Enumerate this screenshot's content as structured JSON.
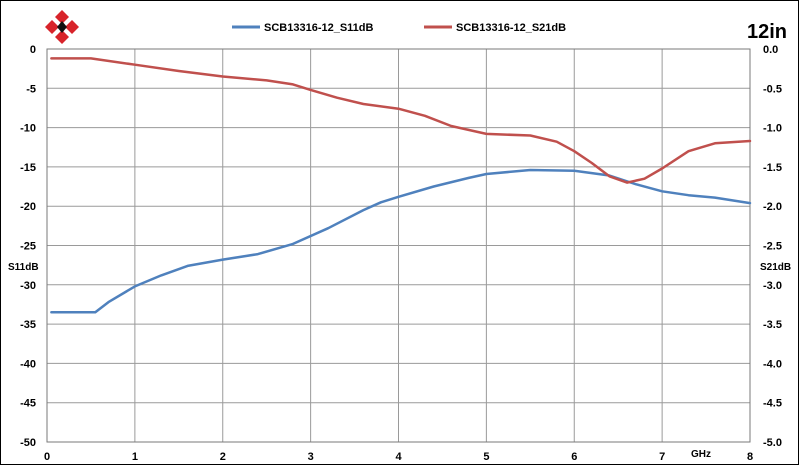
{
  "badge": "12in",
  "chart_data": {
    "type": "line",
    "xlabel": "GHz",
    "ylabel_left": "S11dB",
    "ylabel_right": "S21dB",
    "xlim": [
      0,
      8
    ],
    "ylim_left": [
      -50,
      0
    ],
    "ylim_right": [
      -5.0,
      0.0
    ],
    "x_ticks": [
      "0",
      "1",
      "2",
      "3",
      "4",
      "5",
      "6",
      "7",
      "8"
    ],
    "y_left_ticks": [
      "0",
      "-5",
      "-10",
      "-15",
      "-20",
      "-25",
      "-30",
      "-35",
      "-40",
      "-45",
      "-50"
    ],
    "y_right_ticks": [
      "0.0",
      "-0.5",
      "-1.0",
      "-1.5",
      "-2.0",
      "-2.5",
      "-3.0",
      "-3.5",
      "-4.0",
      "-4.5",
      "-5.0"
    ],
    "grid": true,
    "legend_position": "top",
    "series": [
      {
        "name": "SCB13316-12_S11dB",
        "color": "#4f81bd",
        "axis": "left",
        "x": [
          0.05,
          0.3,
          0.55,
          0.7,
          1.0,
          1.3,
          1.6,
          2.0,
          2.4,
          2.8,
          3.2,
          3.6,
          3.8,
          4.0,
          4.4,
          4.8,
          5.0,
          5.5,
          6.0,
          6.4,
          6.7,
          7.0,
          7.3,
          7.6,
          8.0
        ],
        "y": [
          -33.5,
          -33.5,
          -33.5,
          -32.2,
          -30.2,
          -28.8,
          -27.6,
          -26.8,
          -26.1,
          -24.8,
          -22.8,
          -20.5,
          -19.5,
          -18.8,
          -17.5,
          -16.4,
          -15.9,
          -15.4,
          -15.5,
          -16.1,
          -17.2,
          -18.1,
          -18.6,
          -18.9,
          -19.6
        ]
      },
      {
        "name": "SCB13316-12_S21dB",
        "color": "#c0504d",
        "axis": "right",
        "x": [
          0.05,
          0.5,
          1.0,
          1.5,
          2.0,
          2.5,
          2.8,
          3.0,
          3.3,
          3.6,
          4.0,
          4.3,
          4.6,
          5.0,
          5.5,
          5.8,
          6.0,
          6.2,
          6.4,
          6.6,
          6.8,
          7.0,
          7.3,
          7.6,
          8.0
        ],
        "y": [
          -0.12,
          -0.12,
          -0.2,
          -0.28,
          -0.35,
          -0.4,
          -0.45,
          -0.52,
          -0.62,
          -0.7,
          -0.76,
          -0.85,
          -0.98,
          -1.08,
          -1.1,
          -1.18,
          -1.3,
          -1.45,
          -1.62,
          -1.7,
          -1.65,
          -1.52,
          -1.3,
          -1.2,
          -1.17
        ]
      }
    ]
  }
}
